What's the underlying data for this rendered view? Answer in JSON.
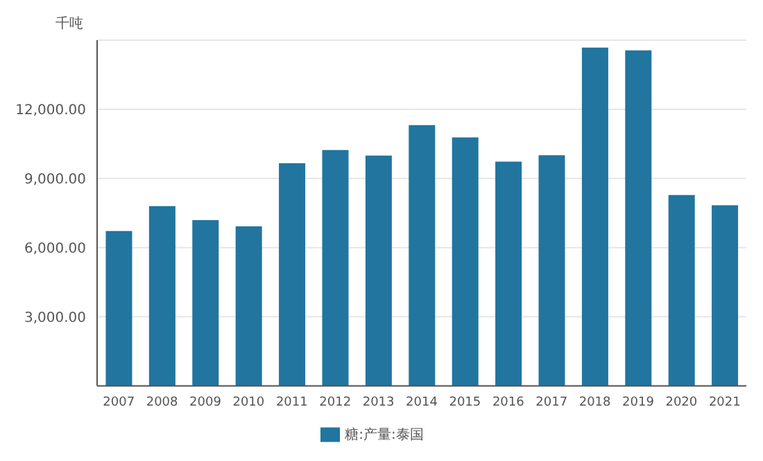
{
  "chart_data": {
    "type": "bar",
    "ylabel": "千吨",
    "categories": [
      "2007",
      "2008",
      "2009",
      "2010",
      "2011",
      "2012",
      "2013",
      "2014",
      "2015",
      "2016",
      "2017",
      "2018",
      "2019",
      "2020",
      "2021"
    ],
    "series": [
      {
        "name": "糖:产量:泰国",
        "color": "#21759f",
        "values": [
          6720,
          7800,
          7190,
          6920,
          9660,
          10230,
          9990,
          11310,
          10780,
          9730,
          10010,
          14680,
          14560,
          8280,
          7840
        ]
      }
    ],
    "ylim": [
      0,
      15000
    ],
    "yticks": [
      {
        "value": 0,
        "label": null
      },
      {
        "value": 3000,
        "label": "3,000.00"
      },
      {
        "value": 6000,
        "label": "6,000.00"
      },
      {
        "value": 9000,
        "label": "9,000.00"
      },
      {
        "value": 12000,
        "label": "12,000.00"
      },
      {
        "value": 15000,
        "label": null
      }
    ],
    "grid": "y",
    "legend": "bottom"
  }
}
